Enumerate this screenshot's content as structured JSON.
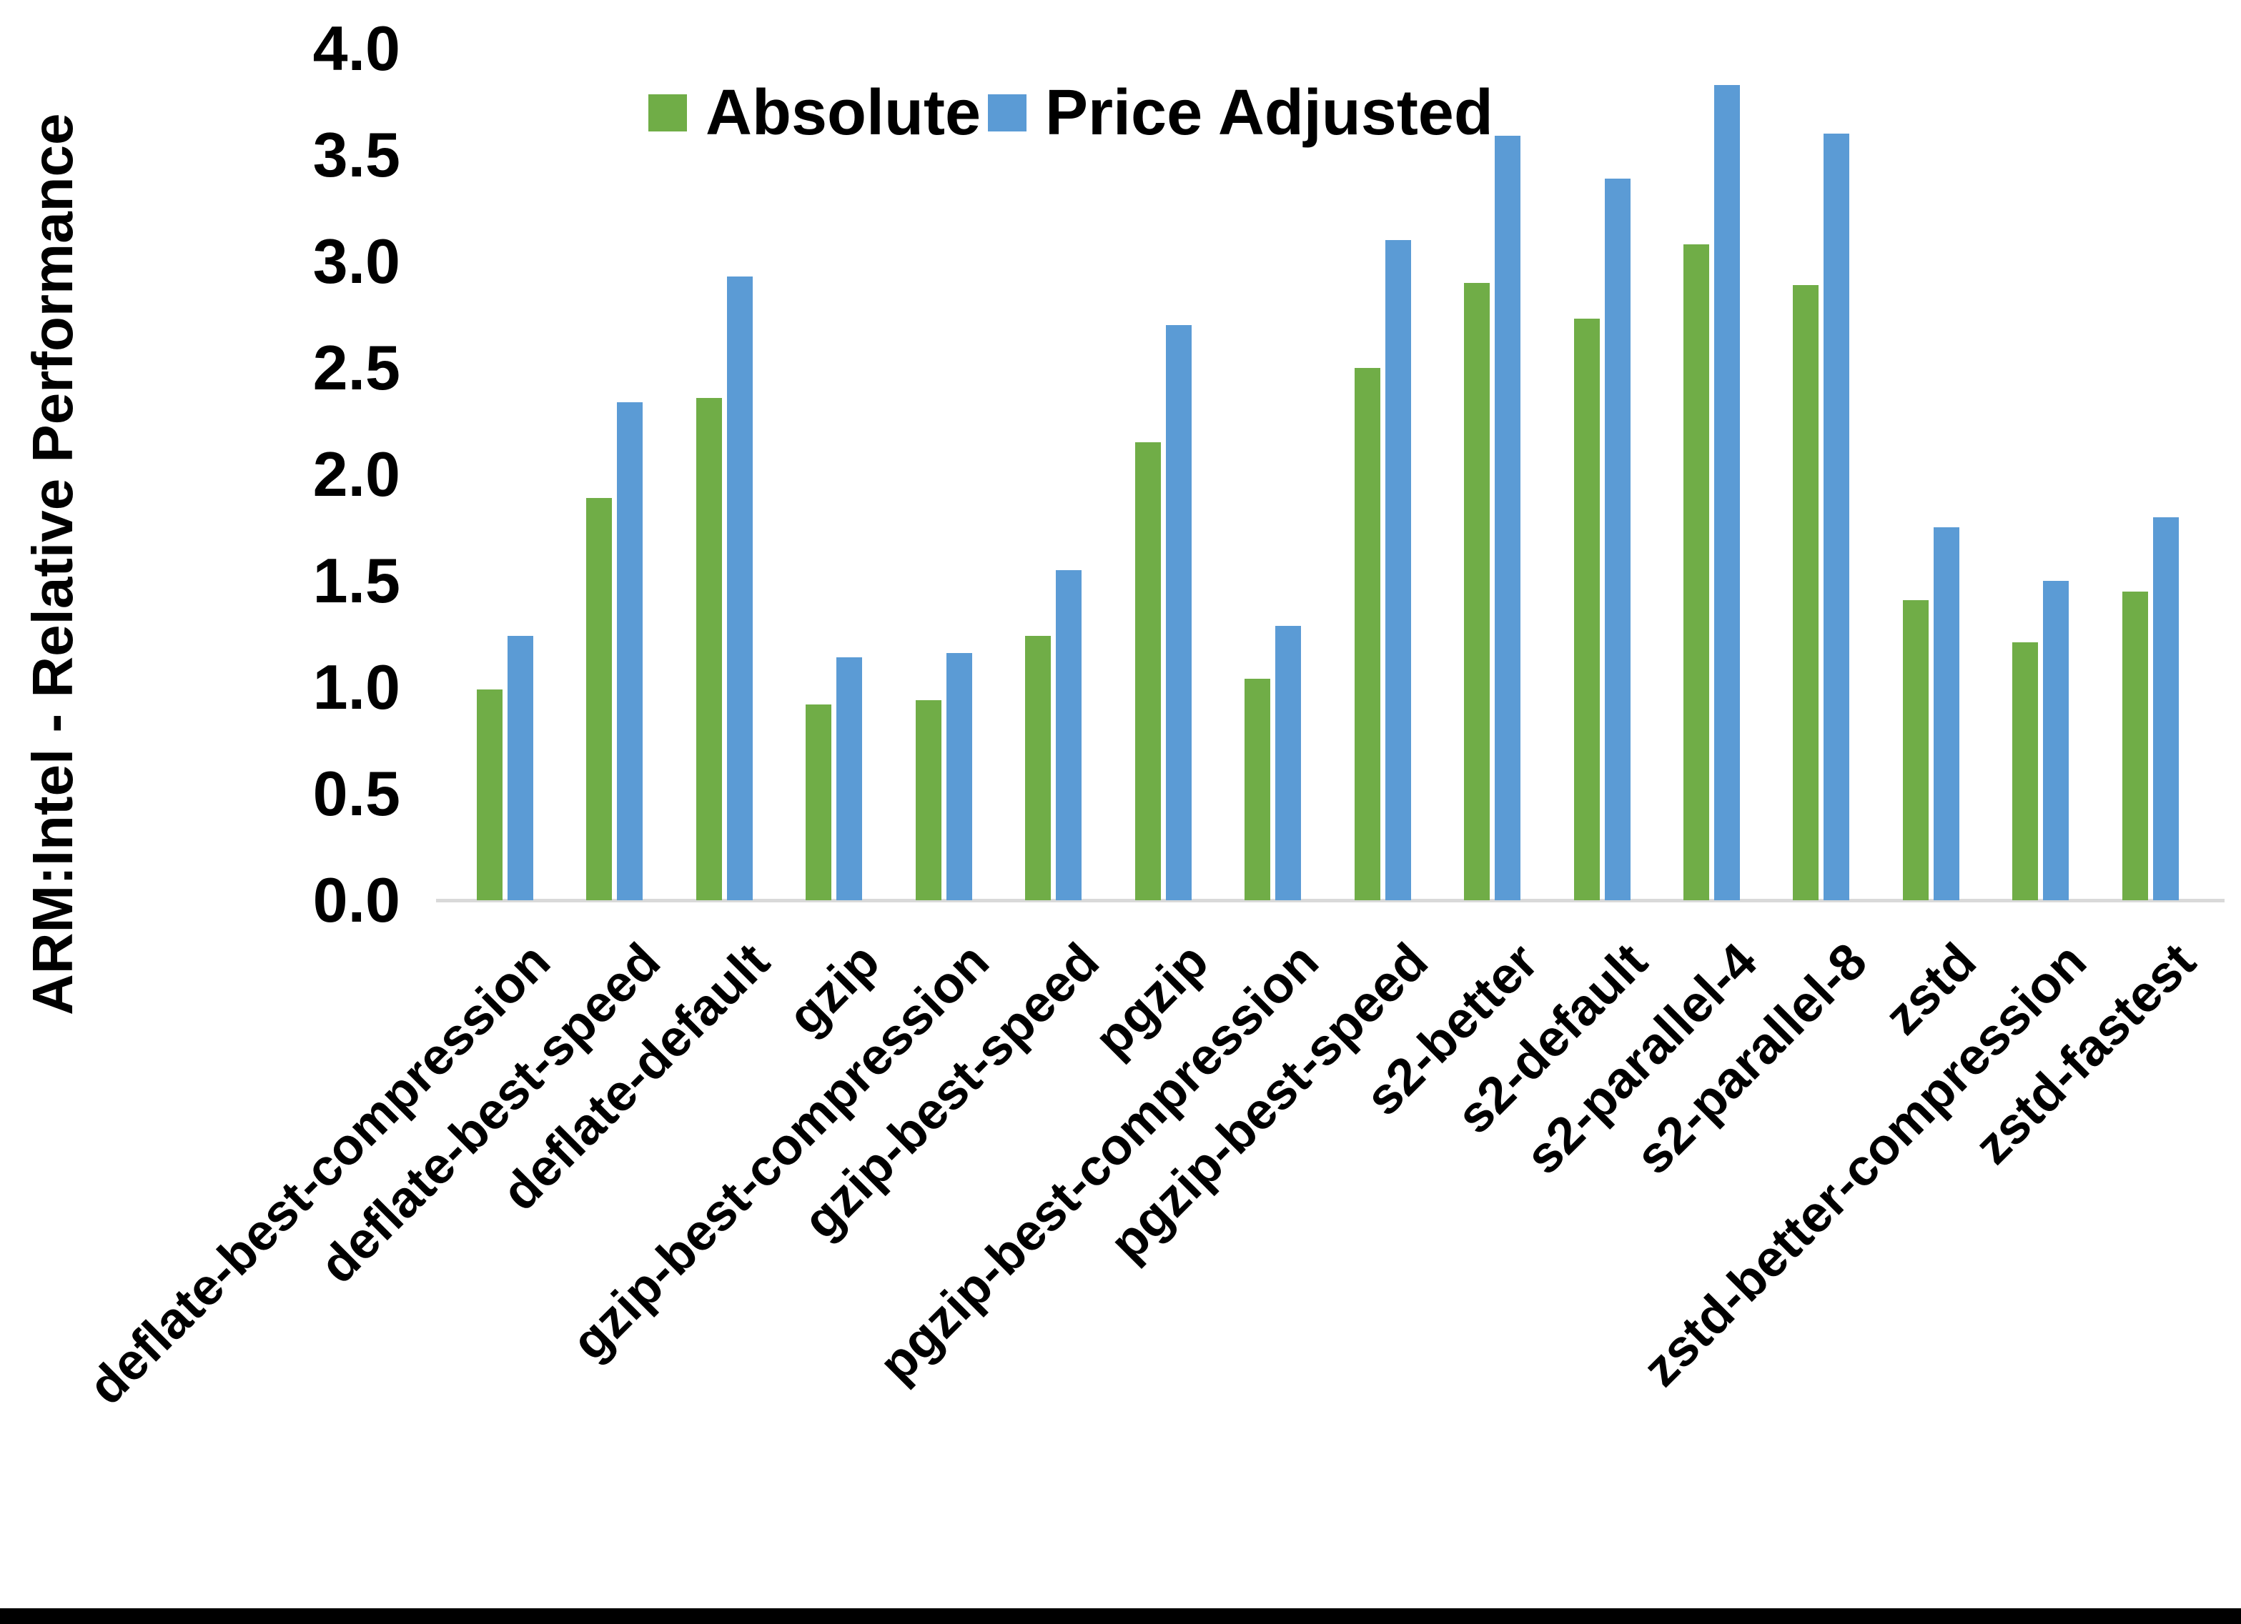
{
  "chart_data": {
    "type": "bar",
    "title": "",
    "xlabel": "",
    "ylabel": "ARM:Intel - Relative Performance",
    "ylim": [
      0.0,
      4.0
    ],
    "ytick_step": 0.5,
    "yticks": [
      "0.0",
      "0.5",
      "1.0",
      "1.5",
      "2.0",
      "2.5",
      "3.0",
      "3.5",
      "4.0"
    ],
    "grid": false,
    "legend_position": "top-center",
    "categories": [
      "deflate-best-compression",
      "deflate-best-speed",
      "deflate-default",
      "gzip",
      "gzip-best-compression",
      "gzip-best-speed",
      "pgzip",
      "pgzip-best-compression",
      "pgzip-best-speed",
      "s2-better",
      "s2-default",
      "s2-parallel-4",
      "s2-parallel-8",
      "zstd",
      "zstd-better-compression",
      "zstd-fastest"
    ],
    "series": [
      {
        "name": "Absolute",
        "color": "#70AD47",
        "values": [
          0.99,
          1.89,
          2.36,
          0.92,
          0.94,
          1.24,
          2.15,
          1.04,
          2.5,
          2.9,
          2.73,
          3.08,
          2.89,
          1.41,
          1.21,
          1.45
        ]
      },
      {
        "name": "Price Adjusted",
        "color": "#5B9BD5",
        "values": [
          1.24,
          2.34,
          2.93,
          1.14,
          1.16,
          1.55,
          2.7,
          1.29,
          3.1,
          3.59,
          3.39,
          3.83,
          3.6,
          1.75,
          1.5,
          1.8
        ]
      }
    ]
  },
  "colors": {
    "axis_line": "#D9D9D9",
    "text": "#000000",
    "background": "#FFFFFF",
    "bottom_border": "#000000"
  }
}
